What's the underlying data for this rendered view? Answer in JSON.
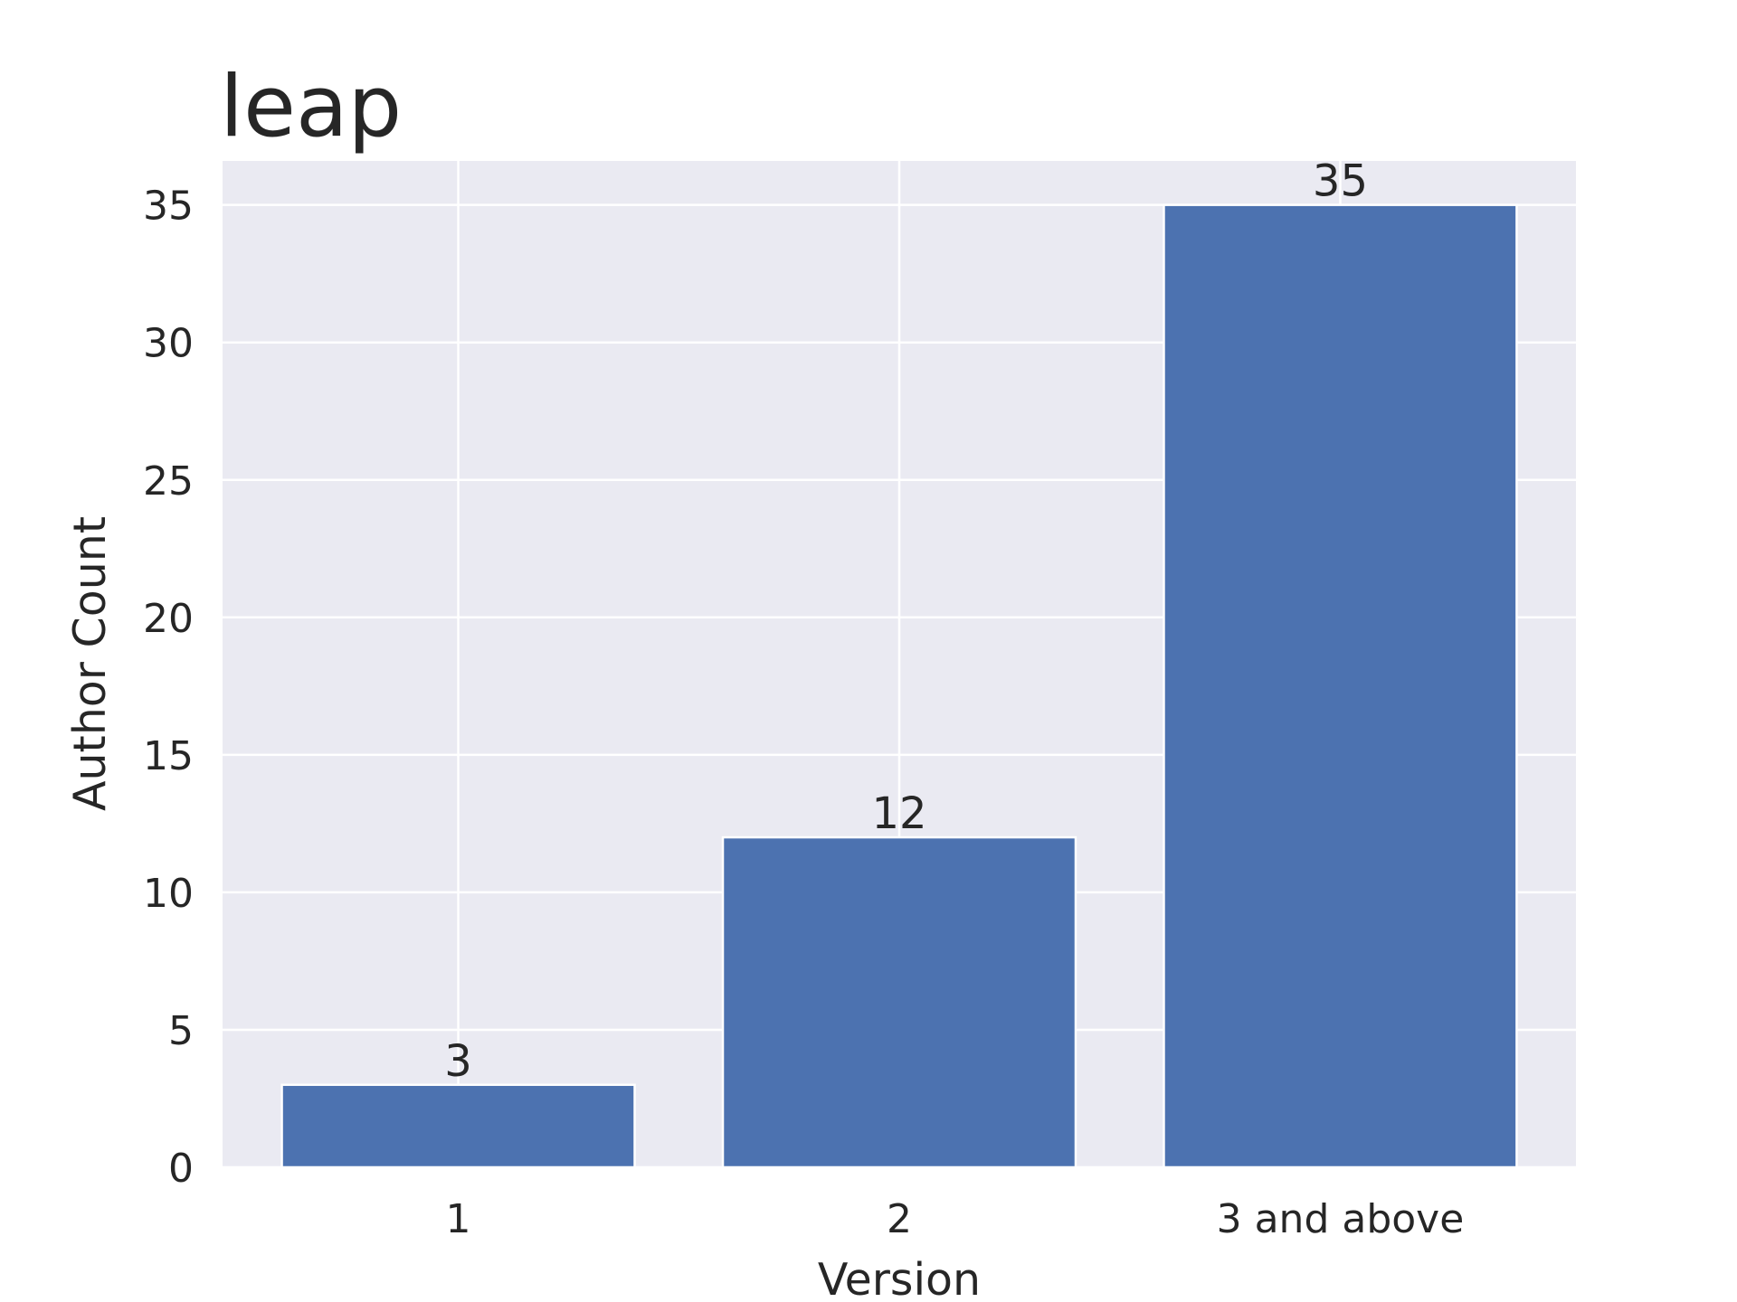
{
  "chart_data": {
    "type": "bar",
    "title": "leap",
    "xlabel": "Version",
    "ylabel": "Author Count",
    "categories": [
      "1",
      "2",
      "3 and above"
    ],
    "values": [
      3,
      12,
      35
    ],
    "data_labels": [
      "3",
      "12",
      "35"
    ],
    "yticks": [
      0,
      5,
      10,
      15,
      20,
      25,
      30,
      35
    ],
    "ylim": [
      0,
      36.6
    ],
    "grid": true,
    "legend": "none",
    "colors": {
      "bar": "#4c72b0",
      "background": "#eaeaf2",
      "grid": "#ffffff",
      "text": "#262626"
    }
  }
}
